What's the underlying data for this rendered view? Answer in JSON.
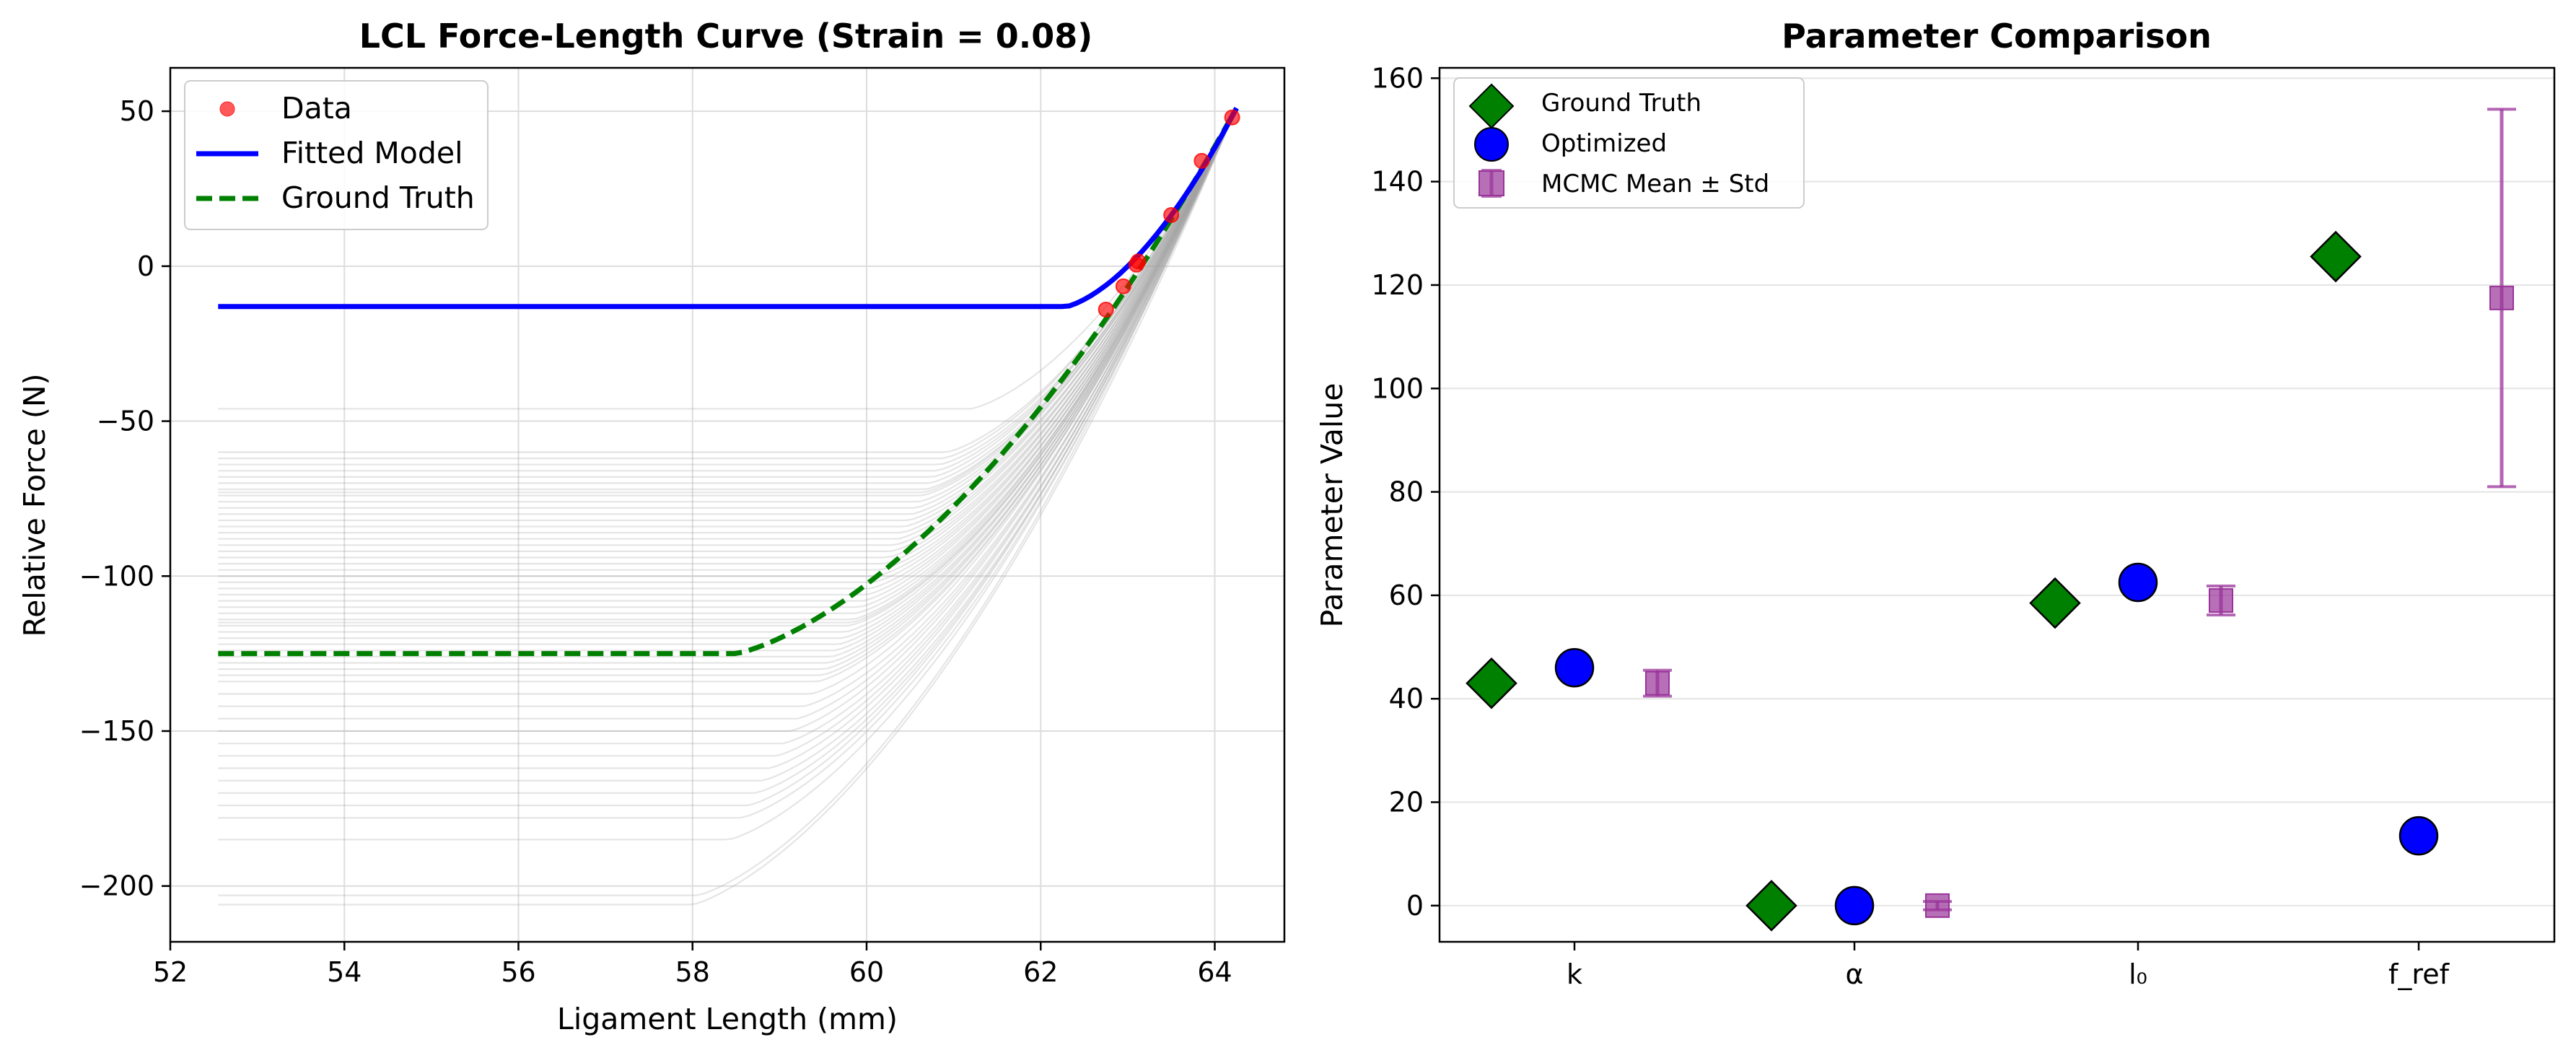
{
  "chart_data": [
    {
      "type": "line",
      "title": "LCL Force-Length Curve (Strain = 0.08)",
      "xlabel": "Ligament Length (mm)",
      "ylabel": "Relative Force (N)",
      "xlim": [
        52,
        64.8
      ],
      "ylim": [
        -218,
        64
      ],
      "xticks": [
        52,
        54,
        56,
        58,
        60,
        62,
        64
      ],
      "yticks": [
        50,
        0,
        -50,
        -100,
        -150,
        -200
      ],
      "grid": true,
      "legend": {
        "placement": "top-left"
      },
      "series": [
        {
          "name": "Data",
          "kind": "scatter",
          "color": "#ff0000",
          "x": [
            62.75,
            62.95,
            63.1,
            63.12,
            63.5,
            63.85,
            64.2
          ],
          "y": [
            -14,
            -6.5,
            0.5,
            1.5,
            16.5,
            34,
            48
          ]
        },
        {
          "name": "Fitted Model",
          "kind": "line",
          "color": "#0000ff",
          "x_start": 52.55,
          "x_end": 64.25,
          "plateau": -13,
          "knee": 62.3,
          "y_end": 51
        },
        {
          "name": "Ground Truth",
          "kind": "dashed-line",
          "color": "#008000",
          "x_start": 52.55,
          "x_end": 64.25,
          "plateau": -125,
          "knee": 58.5,
          "y_end": 51
        }
      ],
      "mcmc_samples": {
        "color": "#a0a0a0",
        "plateaus": [
          -46,
          -60,
          -62,
          -64,
          -66,
          -68,
          -70,
          -72,
          -73,
          -74,
          -76,
          -78,
          -80,
          -82,
          -84,
          -86,
          -88,
          -90,
          -92,
          -94,
          -96,
          -98,
          -100,
          -102,
          -104,
          -106,
          -108,
          -110,
          -112,
          -114,
          -115,
          -116,
          -118,
          -120,
          -122,
          -124,
          -126,
          -128,
          -130,
          -132,
          -134,
          -138,
          -142,
          -146,
          -150,
          -154,
          -158,
          -162,
          -166,
          -170,
          -174,
          -178,
          -185,
          -203,
          -206
        ]
      }
    },
    {
      "type": "scatter",
      "title": "Parameter Comparison",
      "xlabel": "",
      "ylabel": "Parameter Value",
      "categories": [
        "k",
        "α",
        "l₀",
        "f_ref"
      ],
      "ylim": [
        -7,
        162
      ],
      "yticks": [
        0,
        20,
        40,
        60,
        80,
        100,
        120,
        140,
        160
      ],
      "grid": "y",
      "legend": {
        "placement": "top-left"
      },
      "series": [
        {
          "name": "Ground Truth",
          "marker": "diamond",
          "color": "#008000",
          "values": [
            43,
            0,
            58.5,
            125.5
          ]
        },
        {
          "name": "Optimized",
          "marker": "circle",
          "color": "#0000ff",
          "values": [
            46,
            0,
            62.5,
            13.5
          ]
        },
        {
          "name": "MCMC Mean ± Std",
          "marker": "square",
          "color": "#993399",
          "values": [
            43,
            0,
            59,
            117.5
          ],
          "std": [
            2.5,
            0.8,
            2.8,
            36.5
          ]
        }
      ]
    }
  ]
}
